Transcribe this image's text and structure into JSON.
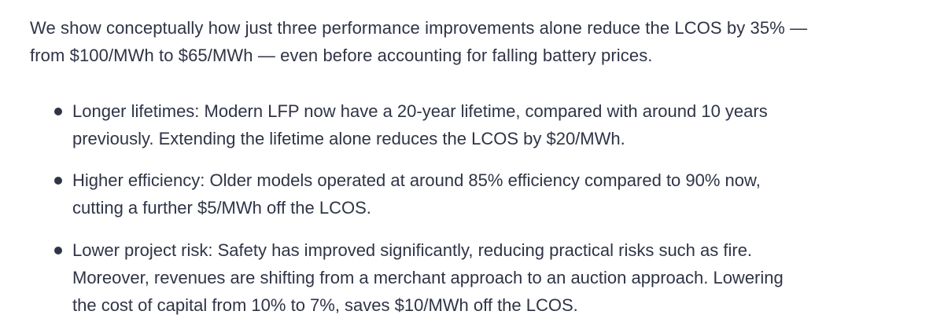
{
  "intro": {
    "line1": "We show conceptually how just three performance improvements alone reduce the LCOS by 35% —",
    "line2": "from $100/MWh to $65/MWh — even before  accounting for falling battery prices."
  },
  "bullets": [
    {
      "line1": "Longer lifetimes: Modern LFP now have a 20-year lifetime, compared with around 10 years",
      "line2": "previously. Extending the lifetime alone reduces the LCOS by $20/MWh."
    },
    {
      "line1": "Higher efficiency: Older models operated at around  85% efficiency compared to 90% now,",
      "line2": "cutting a further $5/MWh off the LCOS."
    },
    {
      "line1": "Lower project risk: Safety has improved significantly, reducing practical risks such as fire.",
      "line2": "Moreover, revenues are shifting from a merchant approach to an auction approach. Lowering",
      "line3": "the cost of capital from 10% to 7%, saves $10/MWh off the LCOS."
    }
  ]
}
